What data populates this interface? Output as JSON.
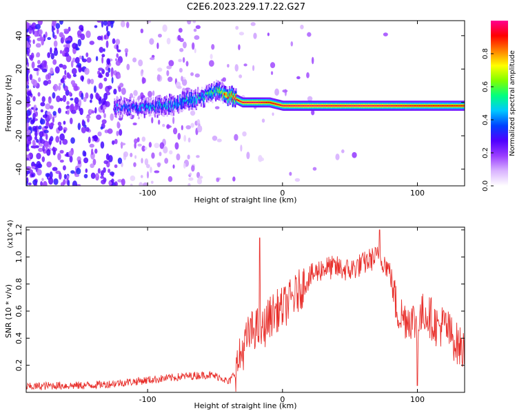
{
  "figure_title": "C2E6.2023.229.17.22.G27",
  "chart_data": [
    {
      "type": "heatmap",
      "title": "",
      "xlabel": "Height of straight line (km)",
      "ylabel": "Frequency (Hz)",
      "xlim": [
        -190,
        135
      ],
      "ylim": [
        -50,
        49
      ],
      "x_ticks": [
        -100,
        0,
        100
      ],
      "y_ticks": [
        -40,
        -20,
        0,
        20,
        40
      ],
      "grid": false,
      "colorbar": {
        "label": "Normalized spectral amplitude",
        "range": [
          0,
          1
        ],
        "ticks": [
          "0.0",
          "0.2",
          "0.4",
          "0.6",
          "0.8"
        ],
        "colors": [
          "#ffffff",
          "#d9b3ff",
          "#9a3dff",
          "#5000ff",
          "#0040ff",
          "#00c8ff",
          "#00ff80",
          "#80ff00",
          "#ffff00",
          "#ff8000",
          "#ff0000",
          "#ff0090"
        ]
      },
      "ridge": {
        "x": [
          -120,
          -100,
          -80,
          -60,
          -50,
          -40,
          -35,
          -30,
          -20,
          -10,
          0,
          20,
          40,
          60,
          80,
          100,
          135
        ],
        "frequency": [
          -3,
          -3,
          -1,
          3,
          7,
          4,
          2,
          0,
          0,
          0,
          -2,
          -2,
          -2,
          -2,
          -2,
          -2,
          -2
        ],
        "amplitude": [
          0.35,
          0.4,
          0.45,
          0.5,
          0.55,
          0.85,
          0.9,
          0.95,
          0.97,
          0.9,
          0.95,
          0.97,
          0.95,
          0.97,
          0.95,
          0.92,
          0.9
        ]
      },
      "noise_description": "scattered low-amplitude speckle, densest for x < -120 km"
    },
    {
      "type": "line",
      "title": "",
      "xlabel": "Height of straight line (km)",
      "ylabel": "SNR (10 * v/v)",
      "y_multiplier": "(x10^4)",
      "xlim": [
        -190,
        135
      ],
      "ylim": [
        0,
        1.22
      ],
      "x_ticks": [
        -100,
        0,
        100
      ],
      "y_ticks": [
        0.2,
        0.4,
        0.6,
        0.8,
        1.0,
        1.2
      ],
      "grid": false,
      "series": [
        {
          "color": "#e8302c",
          "x": [
            -190,
            -170,
            -150,
            -130,
            -110,
            -90,
            -70,
            -55,
            -45,
            -40,
            -35,
            -30,
            -25,
            -20,
            -15,
            -10,
            -5,
            0,
            10,
            20,
            30,
            40,
            50,
            55,
            60,
            65,
            70,
            75,
            80,
            85,
            90,
            95,
            100,
            105,
            110,
            115,
            120,
            125,
            130,
            135
          ],
          "y": [
            0.04,
            0.05,
            0.05,
            0.06,
            0.08,
            0.1,
            0.12,
            0.13,
            0.11,
            0.07,
            0.15,
            0.3,
            0.42,
            0.48,
            0.45,
            0.55,
            0.6,
            0.62,
            0.72,
            0.85,
            0.92,
            0.92,
            0.9,
            0.93,
            0.95,
            0.98,
            1.0,
            0.97,
            0.88,
            0.6,
            0.55,
            0.55,
            0.5,
            0.6,
            0.55,
            0.48,
            0.5,
            0.42,
            0.35,
            0.3
          ]
        }
      ],
      "spikes": [
        {
          "x": -17,
          "y": 1.14
        },
        {
          "x": 72,
          "y": 1.2
        },
        {
          "x": 100,
          "y": 0.05
        }
      ]
    }
  ]
}
